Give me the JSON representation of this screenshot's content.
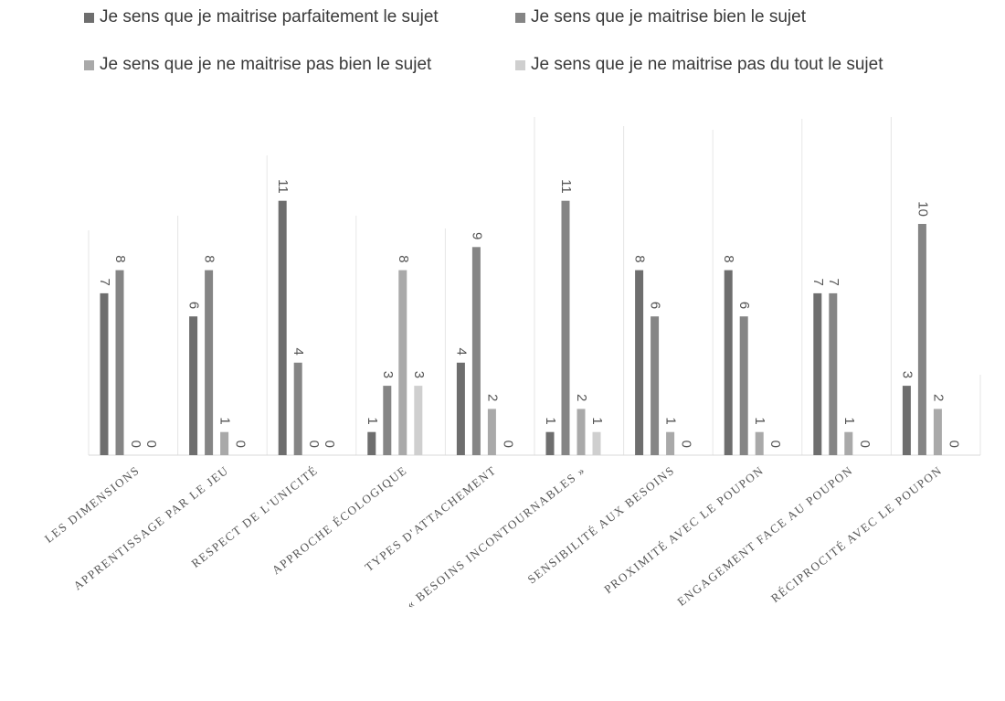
{
  "chart_data": {
    "type": "bar",
    "categories": [
      "LES DIMENSIONS",
      "APPRENTISSAGE PAR LE JEU",
      "RESPECT DE L'UNICITÉ",
      "APPROCHE ÉCOLOGIQUE",
      "TYPES D'ATTACHEMENT",
      "« BESOINS INCONTOURNABLES »",
      "SENSIBILITÉ AUX BESOINS",
      "PROXIMITÉ AVEC LE POUPON",
      "ENGAGEMENT FACE AU POUPON",
      "RÉCIPROCITÉ AVEC LE POUPON"
    ],
    "series": [
      {
        "name": "Je sens que je maitrise parfaitement le sujet",
        "color": "#6e6e6e",
        "values": [
          7,
          6,
          11,
          1,
          4,
          1,
          8,
          8,
          7,
          3
        ]
      },
      {
        "name": "Je sens que je maitrise bien le sujet",
        "color": "#858585",
        "values": [
          8,
          8,
          4,
          3,
          9,
          11,
          6,
          6,
          7,
          10
        ]
      },
      {
        "name": "Je sens que je ne maitrise pas bien le sujet",
        "color": "#a9a9a9",
        "values": [
          0,
          1,
          0,
          8,
          2,
          2,
          1,
          1,
          1,
          2
        ]
      },
      {
        "name": "Je sens que je ne maitrise pas du tout le sujet",
        "color": "#cfcfcf",
        "values": [
          0,
          0,
          0,
          3,
          0,
          1,
          0,
          0,
          0,
          0
        ]
      }
    ],
    "ylim": [
      0,
      12
    ],
    "grid": "vertical category separators",
    "legend_position": "top"
  }
}
